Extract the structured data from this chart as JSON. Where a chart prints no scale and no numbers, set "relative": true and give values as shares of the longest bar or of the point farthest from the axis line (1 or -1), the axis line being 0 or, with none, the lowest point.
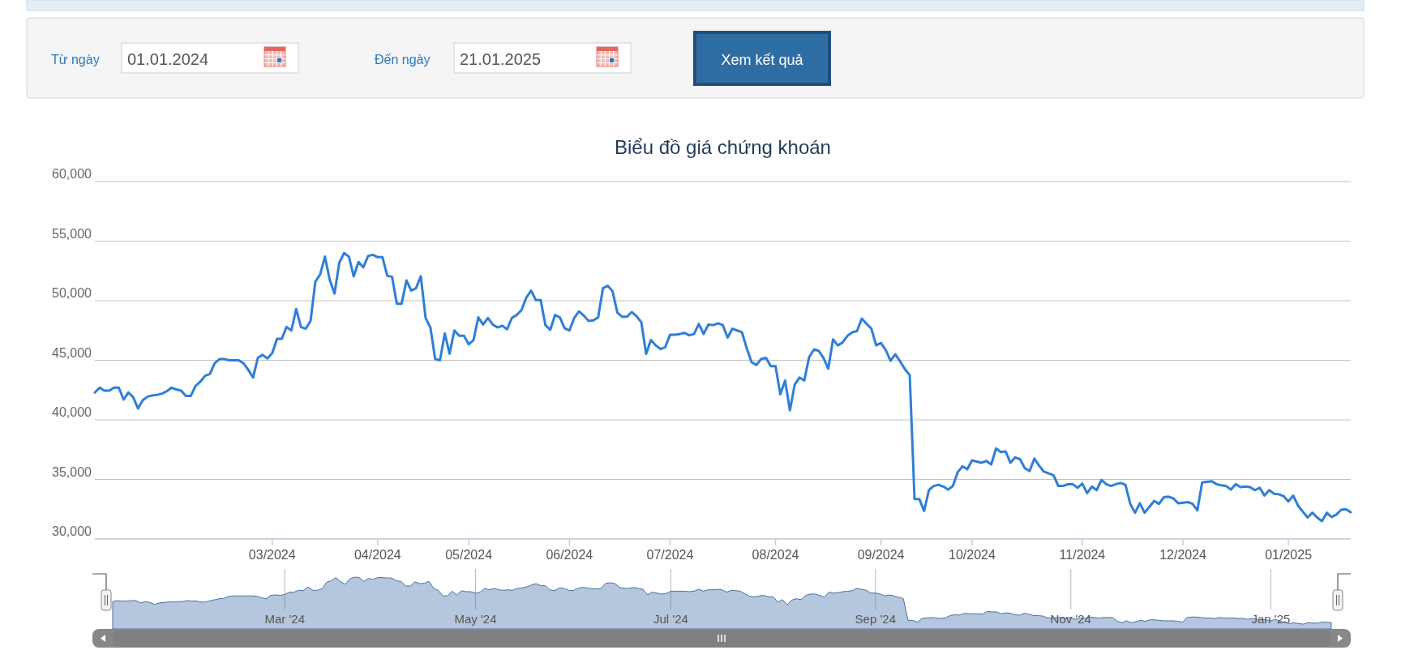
{
  "chart_data": [
    {
      "type": "line",
      "title": "Biểu đồ giá chứng khoán",
      "color": "#2f7ed8",
      "ylim": [
        30000,
        60000
      ],
      "yticks": [
        {
          "value": 30000,
          "label": "30,000"
        },
        {
          "value": 35000,
          "label": "35,000"
        },
        {
          "value": 40000,
          "label": "40,000"
        },
        {
          "value": 45000,
          "label": "45,000"
        },
        {
          "value": 50000,
          "label": "50,000"
        },
        {
          "value": 55000,
          "label": "55,000"
        },
        {
          "value": 60000,
          "label": "60,000"
        }
      ],
      "grid": "y",
      "annotations": [
        "Từ ngày",
        "01.01.2024",
        "Đến ngày",
        "21.01.2025",
        "Xem kết quả"
      ],
      "categories": [
        null,
        null,
        null,
        null,
        null,
        null,
        null,
        null,
        null,
        null,
        null,
        null,
        null,
        null,
        null,
        null,
        null,
        null,
        null,
        null,
        null,
        null,
        null,
        null,
        null,
        null,
        null,
        null,
        null,
        null,
        null,
        null,
        null,
        null,
        null,
        null,
        null,
        "03/2024",
        null,
        null,
        null,
        null,
        null,
        null,
        null,
        null,
        null,
        null,
        null,
        null,
        null,
        null,
        null,
        null,
        null,
        null,
        null,
        null,
        null,
        "04/2024",
        null,
        null,
        null,
        null,
        null,
        null,
        null,
        null,
        null,
        null,
        null,
        null,
        null,
        null,
        null,
        null,
        null,
        null,
        "05/2024",
        null,
        null,
        null,
        null,
        null,
        null,
        null,
        null,
        null,
        null,
        null,
        null,
        null,
        null,
        null,
        null,
        null,
        null,
        null,
        null,
        "06/2024",
        null,
        null,
        null,
        null,
        null,
        null,
        null,
        null,
        null,
        null,
        null,
        null,
        null,
        null,
        null,
        null,
        null,
        null,
        null,
        null,
        "07/2024",
        null,
        null,
        null,
        null,
        null,
        null,
        null,
        null,
        null,
        null,
        null,
        null,
        null,
        null,
        null,
        null,
        null,
        null,
        null,
        null,
        null,
        "08/2024",
        null,
        null,
        null,
        null,
        null,
        null,
        null,
        null,
        null,
        null,
        null,
        null,
        null,
        null,
        null,
        null,
        null,
        null,
        null,
        null,
        null,
        "09/2024",
        null,
        null,
        null,
        null,
        null,
        null,
        null,
        null,
        null,
        null,
        null,
        null,
        null,
        null,
        null,
        null,
        null,
        null,
        "10/2024",
        null,
        null,
        null,
        null,
        null,
        null,
        null,
        null,
        null,
        null,
        null,
        null,
        null,
        null,
        null,
        null,
        null,
        null,
        null,
        null,
        null,
        null,
        "11/2024",
        null,
        null,
        null,
        null,
        null,
        null,
        null,
        null,
        null,
        null,
        null,
        null,
        null,
        null,
        null,
        null,
        null,
        null,
        null,
        null,
        "12/2024",
        null,
        null,
        null,
        null,
        null,
        null,
        null,
        null,
        null,
        null,
        null,
        null,
        null,
        null,
        null,
        null,
        null,
        null,
        null,
        null,
        null,
        "01/2025",
        null,
        null,
        null,
        null,
        null,
        null,
        null,
        null,
        null,
        null,
        null,
        null,
        null
      ],
      "values": [
        42300,
        42700,
        42450,
        42450,
        42700,
        42700,
        41700,
        42300,
        41900,
        40950,
        41650,
        41950,
        42050,
        42100,
        42200,
        42400,
        42700,
        42550,
        42450,
        42000,
        42000,
        42850,
        43200,
        43700,
        43850,
        44750,
        45100,
        45100,
        45000,
        45000,
        45000,
        44750,
        44200,
        43550,
        45200,
        45450,
        45150,
        45600,
        46800,
        46800,
        47800,
        47500,
        49300,
        47800,
        47650,
        48300,
        51600,
        52200,
        53700,
        51750,
        50600,
        53200,
        54000,
        53700,
        52050,
        53250,
        52800,
        53750,
        53850,
        53650,
        53650,
        52100,
        52000,
        49750,
        49750,
        51700,
        50850,
        51050,
        52050,
        48550,
        47750,
        45100,
        45000,
        47250,
        45550,
        47500,
        47050,
        47050,
        46350,
        46700,
        48600,
        48000,
        48550,
        48000,
        47750,
        47900,
        47600,
        48550,
        48800,
        49200,
        50250,
        50850,
        50050,
        50050,
        47950,
        47550,
        48800,
        48600,
        47700,
        47500,
        48550,
        49100,
        48750,
        48300,
        48350,
        48600,
        51050,
        51250,
        50800,
        49000,
        48650,
        48650,
        49050,
        48700,
        48200,
        45550,
        46700,
        46250,
        45950,
        46100,
        47150,
        47150,
        47200,
        47300,
        47100,
        47200,
        48050,
        47200,
        48000,
        47950,
        48100,
        47950,
        46900,
        47650,
        47500,
        47350,
        46000,
        44850,
        44600,
        45100,
        45200,
        44500,
        44500,
        42150,
        43300,
        40800,
        42950,
        43550,
        43300,
        45250,
        45900,
        45800,
        45200,
        44300,
        46750,
        46250,
        46500,
        47050,
        47350,
        47450,
        48500,
        48050,
        47650,
        46250,
        46450,
        45850,
        44950,
        45500,
        44900,
        44250,
        43750,
        33350,
        33350,
        32350,
        34100,
        34450,
        34550,
        34400,
        34150,
        34450,
        35600,
        36100,
        35850,
        36600,
        36500,
        36400,
        36550,
        36250,
        37600,
        37300,
        37350,
        36400,
        36850,
        36700,
        35950,
        35700,
        36750,
        36150,
        35650,
        35500,
        35350,
        34450,
        34450,
        34600,
        34600,
        34300,
        34650,
        33850,
        34400,
        34100,
        34950,
        34600,
        34450,
        34600,
        34700,
        34550,
        32950,
        32200,
        33000,
        32200,
        32700,
        33200,
        32950,
        33500,
        33550,
        33400,
        33000,
        33050,
        33100,
        32950,
        32400,
        34750,
        34800,
        34850,
        34600,
        34500,
        34450,
        34150,
        34600,
        34350,
        34400,
        34350,
        34100,
        34300,
        33650,
        34100,
        33800,
        33750,
        33600,
        33150,
        33650,
        32800,
        32300,
        31800,
        32200,
        31800,
        31500,
        32200,
        31850,
        32050,
        32450,
        32500,
        32250
      ]
    },
    {
      "type": "area",
      "color": "#4572a7",
      "relative": true,
      "tick_labels": "x",
      "grid": "x",
      "categories": [
        null,
        null,
        null,
        null,
        null,
        null,
        null,
        null,
        null,
        null,
        null,
        null,
        null,
        null,
        null,
        null,
        null,
        null,
        null,
        null,
        null,
        null,
        null,
        null,
        null,
        null,
        null,
        null,
        null,
        null,
        null,
        null,
        null,
        null,
        null,
        null,
        null,
        "Mar '24",
        null,
        null,
        null,
        null,
        null,
        null,
        null,
        null,
        null,
        null,
        null,
        null,
        null,
        null,
        null,
        null,
        null,
        null,
        null,
        null,
        null,
        null,
        null,
        null,
        null,
        null,
        null,
        null,
        null,
        null,
        null,
        null,
        null,
        null,
        null,
        null,
        null,
        null,
        null,
        null,
        "May '24",
        null,
        null,
        null,
        null,
        null,
        null,
        null,
        null,
        null,
        null,
        null,
        null,
        null,
        null,
        null,
        null,
        null,
        null,
        null,
        null,
        null,
        null,
        null,
        null,
        null,
        null,
        null,
        null,
        null,
        null,
        null,
        null,
        null,
        null,
        null,
        null,
        null,
        null,
        null,
        null,
        null,
        "Jul '24",
        null,
        null,
        null,
        null,
        null,
        null,
        null,
        null,
        null,
        null,
        null,
        null,
        null,
        null,
        null,
        null,
        null,
        null,
        null,
        null,
        null,
        null,
        null,
        null,
        null,
        null,
        null,
        null,
        null,
        null,
        null,
        null,
        null,
        null,
        null,
        null,
        null,
        null,
        null,
        null,
        null,
        null,
        null,
        "Sep '24",
        null,
        null,
        null,
        null,
        null,
        null,
        null,
        null,
        null,
        null,
        null,
        null,
        null,
        null,
        null,
        null,
        null,
        null,
        null,
        null,
        null,
        null,
        null,
        null,
        null,
        null,
        null,
        null,
        null,
        null,
        null,
        null,
        null,
        null,
        null,
        null,
        null,
        null,
        null,
        null,
        null,
        "Nov '24",
        null,
        null,
        null,
        null,
        null,
        null,
        null,
        null,
        null,
        null,
        null,
        null,
        null,
        null,
        null,
        null,
        null,
        null,
        null,
        null,
        null,
        null,
        null,
        null,
        null,
        null,
        null,
        null,
        null,
        null,
        null,
        null,
        null,
        null,
        null,
        null,
        null,
        null,
        null,
        null,
        null,
        null,
        "Jan '25",
        null,
        null,
        null,
        null,
        null,
        null,
        null,
        null,
        null,
        null,
        null,
        null,
        null
      ],
      "values": [
        0.48,
        0.5,
        0.49,
        0.49,
        0.5,
        0.5,
        0.45,
        0.48,
        0.46,
        0.42,
        0.45,
        0.46,
        0.47,
        0.47,
        0.48,
        0.48,
        0.5,
        0.49,
        0.49,
        0.47,
        0.47,
        0.5,
        0.52,
        0.54,
        0.55,
        0.59,
        0.6,
        0.6,
        0.6,
        0.6,
        0.6,
        0.59,
        0.56,
        0.54,
        0.61,
        0.62,
        0.61,
        0.63,
        0.68,
        0.68,
        0.72,
        0.71,
        0.79,
        0.72,
        0.72,
        0.75,
        0.89,
        0.92,
        0.99,
        0.9,
        0.85,
        0.96,
        1,
        0.99,
        0.91,
        0.97,
        0.95,
        0.99,
        0.99,
        0.98,
        0.98,
        0.92,
        0.91,
        0.81,
        0.81,
        0.9,
        0.86,
        0.87,
        0.91,
        0.76,
        0.72,
        0.6,
        0.6,
        0.7,
        0.62,
        0.71,
        0.69,
        0.69,
        0.66,
        0.68,
        0.76,
        0.73,
        0.76,
        0.73,
        0.72,
        0.73,
        0.72,
        0.76,
        0.77,
        0.79,
        0.83,
        0.86,
        0.82,
        0.82,
        0.73,
        0.71,
        0.77,
        0.76,
        0.72,
        0.71,
        0.76,
        0.78,
        0.77,
        0.75,
        0.75,
        0.76,
        0.87,
        0.88,
        0.86,
        0.78,
        0.76,
        0.76,
        0.78,
        0.76,
        0.74,
        0.62,
        0.68,
        0.66,
        0.64,
        0.65,
        0.7,
        0.7,
        0.7,
        0.7,
        0.69,
        0.7,
        0.74,
        0.7,
        0.73,
        0.73,
        0.74,
        0.73,
        0.68,
        0.72,
        0.71,
        0.7,
        0.64,
        0.59,
        0.58,
        0.6,
        0.61,
        0.58,
        0.58,
        0.47,
        0.52,
        0.41,
        0.51,
        0.54,
        0.52,
        0.61,
        0.64,
        0.64,
        0.61,
        0.57,
        0.68,
        0.66,
        0.67,
        0.69,
        0.7,
        0.71,
        0.76,
        0.74,
        0.72,
        0.66,
        0.66,
        0.64,
        0.6,
        0.62,
        0.6,
        0.57,
        0.54,
        0.08,
        0.08,
        0.04,
        0.12,
        0.13,
        0.14,
        0.13,
        0.12,
        0.13,
        0.18,
        0.2,
        0.19,
        0.23,
        0.22,
        0.22,
        0.22,
        0.21,
        0.27,
        0.26,
        0.26,
        0.22,
        0.24,
        0.23,
        0.2,
        0.19,
        0.23,
        0.21,
        0.18,
        0.18,
        0.17,
        0.13,
        0.13,
        0.14,
        0.14,
        0.12,
        0.14,
        0.1,
        0.13,
        0.12,
        0.15,
        0.14,
        0.13,
        0.14,
        0.14,
        0.14,
        0.06,
        0.03,
        0.07,
        0.03,
        0.05,
        0.08,
        0.06,
        0.09,
        0.09,
        0.08,
        0.07,
        0.07,
        0.07,
        0.06,
        0.04,
        0.14,
        0.15,
        0.15,
        0.14,
        0.13,
        0.13,
        0.12,
        0.14,
        0.13,
        0.13,
        0.13,
        0.12,
        0.12,
        0.1,
        0.12,
        0.1,
        0.1,
        0.09,
        0.07,
        0.1,
        0.06,
        0.04,
        0.01,
        0.03,
        0.01,
        0,
        0.03,
        0.02,
        0.02,
        0.04,
        0.04,
        0.03
      ]
    }
  ]
}
